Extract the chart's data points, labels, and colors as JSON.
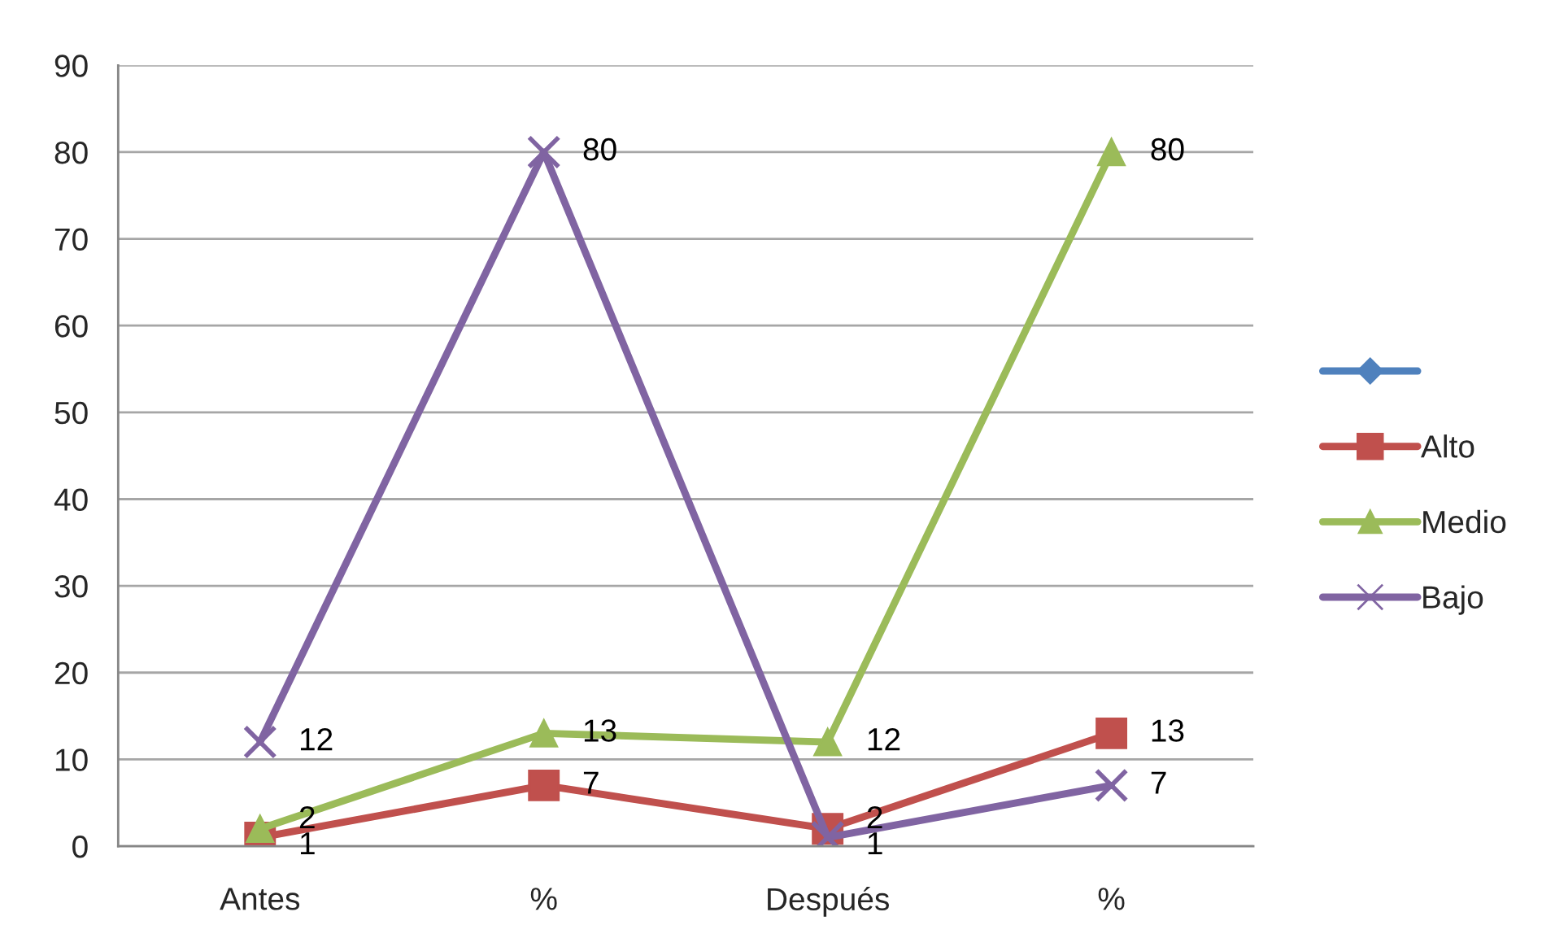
{
  "chart_data": {
    "type": "line",
    "categories": [
      "Antes",
      "%",
      "Después",
      "%"
    ],
    "series": [
      {
        "color": "#4f81bd",
        "marker": "diamond",
        "values": [
          null,
          null,
          null,
          null
        ]
      },
      {
        "name": "Alto",
        "color": "#c0504d",
        "marker": "square",
        "values": [
          1,
          7,
          2,
          13
        ]
      },
      {
        "name": "Medio",
        "color": "#9bbb59",
        "marker": "triangle",
        "values": [
          2,
          13,
          12,
          80
        ]
      },
      {
        "name": "Bajo",
        "color": "#8064a2",
        "marker": "cross",
        "values": [
          12,
          80,
          1,
          7
        ]
      }
    ],
    "ylim": [
      0,
      90
    ],
    "yticks": [
      0,
      10,
      20,
      30,
      40,
      50,
      60,
      70,
      80,
      90
    ],
    "grid": "y",
    "legend": "right",
    "data_labels": true,
    "line_style": "solid"
  }
}
